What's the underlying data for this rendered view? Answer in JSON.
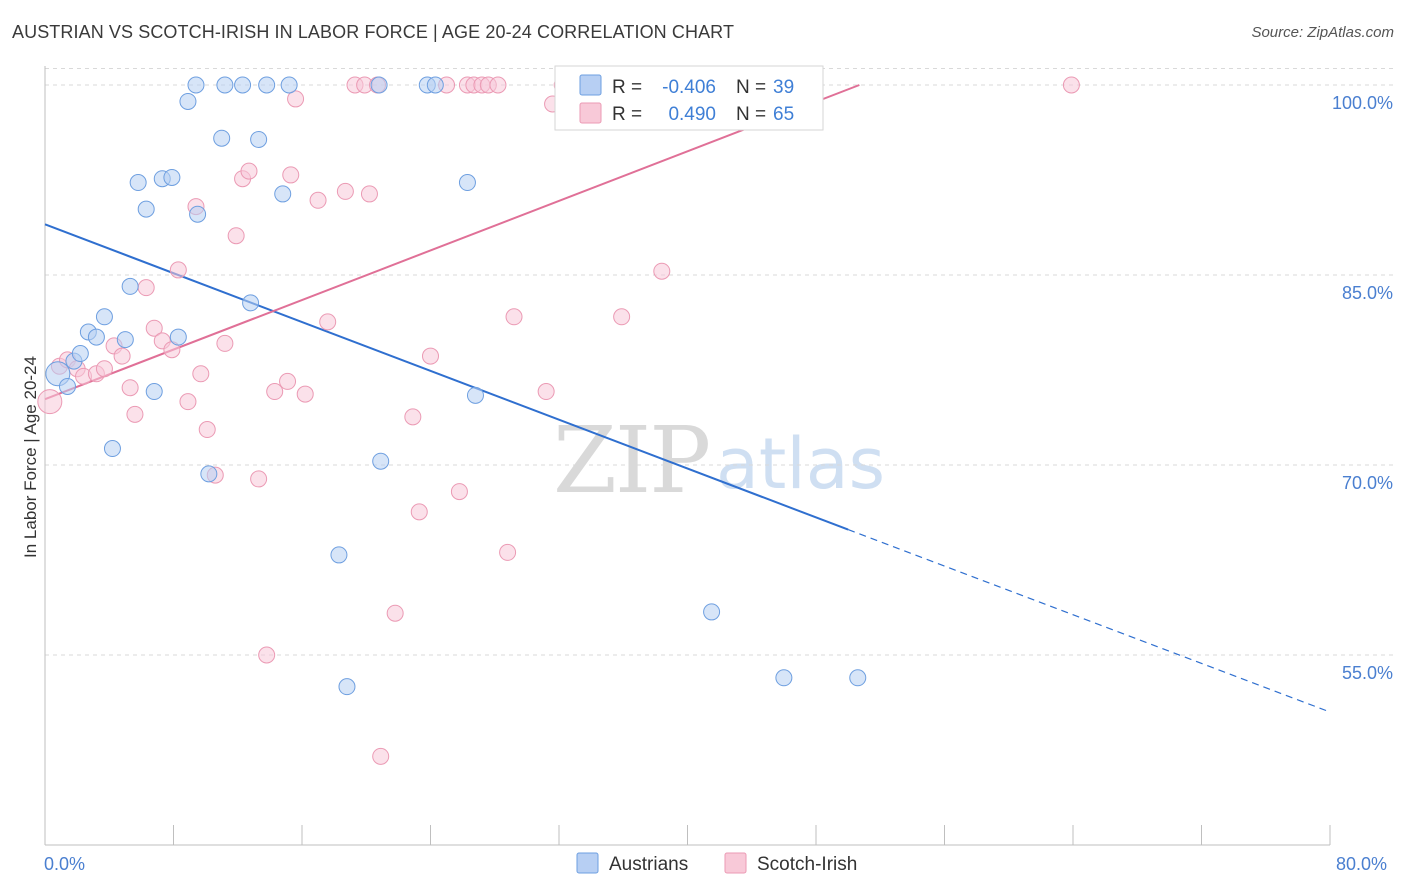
{
  "title": "AUSTRIAN VS SCOTCH-IRISH IN LABOR FORCE | AGE 20-24 CORRELATION CHART",
  "source": "Source: ZipAtlas.com",
  "watermark": {
    "zip": "ZIP",
    "atlas": "atlas"
  },
  "legend_top": {
    "rows": [
      {
        "r_label": "R =",
        "r_value": "-0.406",
        "n_label": "N =",
        "n_value": "39"
      },
      {
        "r_label": "R =",
        "r_value": "0.490",
        "n_label": "N =",
        "n_value": "65"
      }
    ]
  },
  "legend_bottom": {
    "austrians": "Austrians",
    "scotch_irish": "Scotch-Irish"
  },
  "colors": {
    "austrians_fill": "#b7cff3",
    "austrians_stroke": "#6e9fe0",
    "austrians_line": "#2f6fcf",
    "scotch_fill": "#f8c9d8",
    "scotch_stroke": "#eb9ab4",
    "scotch_line": "#e07097",
    "tick_label": "#4a7fd0",
    "grid": "#d9d9d9"
  },
  "chart_data": {
    "type": "scatter",
    "title": "AUSTRIAN VS SCOTCH-IRISH IN LABOR FORCE | AGE 20-24 CORRELATION CHART",
    "xlabel": "",
    "ylabel": "In Labor Force | Age 20-24",
    "xlim": [
      0,
      80
    ],
    "ylim": [
      40,
      101.5
    ],
    "x_tick_labels": [
      "0.0%",
      "80.0%"
    ],
    "y_ticks": [
      55,
      70,
      85,
      100
    ],
    "y_tick_labels": [
      "55.0%",
      "70.0%",
      "85.0%",
      "100.0%"
    ],
    "grid": "horizontal dashed",
    "legend_placement": "top-center",
    "series": [
      {
        "name": "Austrians",
        "r": -0.406,
        "n": 39,
        "trend": {
          "x_start": 0,
          "y_start": 89.0,
          "x_solid_end": 50.0,
          "y_solid_end": 64.9,
          "x_end": 80,
          "y_end": 50.5
        },
        "points": [
          [
            0.8,
            77.2
          ],
          [
            1.4,
            76.2
          ],
          [
            1.8,
            78.2
          ],
          [
            2.2,
            78.8
          ],
          [
            2.7,
            80.5
          ],
          [
            3.2,
            80.1
          ],
          [
            3.7,
            81.7
          ],
          [
            4.2,
            71.3
          ],
          [
            5.0,
            79.9
          ],
          [
            5.3,
            84.1
          ],
          [
            5.8,
            92.3
          ],
          [
            6.3,
            90.2
          ],
          [
            6.8,
            75.8
          ],
          [
            7.3,
            92.6
          ],
          [
            7.9,
            92.7
          ],
          [
            8.3,
            80.1
          ],
          [
            8.9,
            98.7
          ],
          [
            9.4,
            100.0
          ],
          [
            9.5,
            89.8
          ],
          [
            10.2,
            69.3
          ],
          [
            11.0,
            95.8
          ],
          [
            11.2,
            100.0
          ],
          [
            12.3,
            100.0
          ],
          [
            12.8,
            82.8
          ],
          [
            13.3,
            95.7
          ],
          [
            13.8,
            100.0
          ],
          [
            14.8,
            91.4
          ],
          [
            15.2,
            100.0
          ],
          [
            18.3,
            62.9
          ],
          [
            18.8,
            52.5
          ],
          [
            20.8,
            100.0
          ],
          [
            20.9,
            70.3
          ],
          [
            23.8,
            100.0
          ],
          [
            24.3,
            100.0
          ],
          [
            26.3,
            92.3
          ],
          [
            26.8,
            75.5
          ],
          [
            41.5,
            58.4
          ],
          [
            46.0,
            53.2
          ],
          [
            50.6,
            53.2
          ]
        ]
      },
      {
        "name": "Scotch-Irish",
        "r": 0.49,
        "n": 65,
        "trend": {
          "x_start": 0,
          "y_start": 75.2,
          "x_end": 50.7,
          "y_end": 100.0
        },
        "points": [
          [
            0.3,
            75.0
          ],
          [
            0.9,
            77.8
          ],
          [
            1.4,
            78.3
          ],
          [
            2.0,
            77.6
          ],
          [
            2.4,
            77.0
          ],
          [
            3.2,
            77.2
          ],
          [
            3.7,
            77.6
          ],
          [
            4.3,
            79.4
          ],
          [
            4.8,
            78.6
          ],
          [
            5.3,
            76.1
          ],
          [
            5.6,
            74.0
          ],
          [
            6.3,
            84.0
          ],
          [
            6.8,
            80.8
          ],
          [
            7.3,
            79.8
          ],
          [
            7.9,
            79.1
          ],
          [
            8.3,
            85.4
          ],
          [
            8.9,
            75.0
          ],
          [
            9.4,
            90.4
          ],
          [
            9.7,
            77.2
          ],
          [
            10.1,
            72.8
          ],
          [
            10.6,
            69.2
          ],
          [
            11.2,
            79.6
          ],
          [
            11.9,
            88.1
          ],
          [
            12.3,
            92.6
          ],
          [
            12.7,
            93.2
          ],
          [
            13.3,
            68.9
          ],
          [
            13.8,
            55.0
          ],
          [
            14.3,
            75.8
          ],
          [
            15.1,
            76.6
          ],
          [
            15.3,
            92.9
          ],
          [
            15.6,
            98.9
          ],
          [
            16.2,
            75.6
          ],
          [
            17.0,
            90.9
          ],
          [
            17.6,
            81.3
          ],
          [
            18.7,
            91.6
          ],
          [
            19.3,
            100.0
          ],
          [
            19.9,
            100.0
          ],
          [
            20.2,
            91.4
          ],
          [
            20.7,
            100.0
          ],
          [
            20.9,
            47.0
          ],
          [
            21.8,
            58.3
          ],
          [
            22.9,
            73.8
          ],
          [
            23.3,
            66.3
          ],
          [
            24.0,
            78.6
          ],
          [
            25.0,
            100.0
          ],
          [
            25.8,
            67.9
          ],
          [
            26.3,
            100.0
          ],
          [
            26.7,
            100.0
          ],
          [
            27.2,
            100.0
          ],
          [
            27.6,
            100.0
          ],
          [
            28.2,
            100.0
          ],
          [
            28.8,
            63.1
          ],
          [
            29.2,
            81.7
          ],
          [
            31.2,
            75.8
          ],
          [
            31.6,
            98.5
          ],
          [
            32.2,
            100.0
          ],
          [
            33.3,
            100.0
          ],
          [
            34.3,
            100.0
          ],
          [
            35.9,
            81.7
          ],
          [
            37.2,
            100.0
          ],
          [
            38.4,
            85.3
          ],
          [
            39.6,
            100.0
          ],
          [
            43.6,
            100.0
          ],
          [
            47.2,
            100.0
          ],
          [
            63.9,
            100.0
          ]
        ]
      }
    ]
  }
}
